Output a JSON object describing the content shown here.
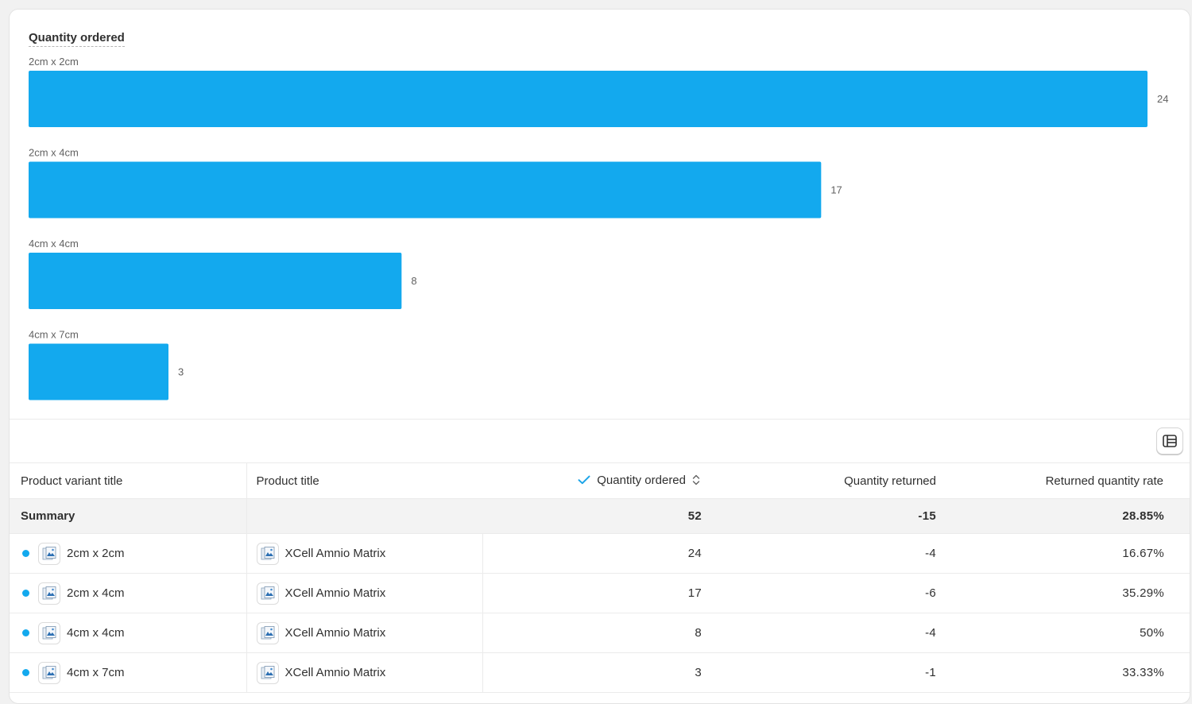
{
  "chart_data": {
    "type": "bar",
    "orientation": "horizontal",
    "title": "Quantity ordered",
    "categories": [
      "2cm x 2cm",
      "2cm x 4cm",
      "4cm x 4cm",
      "4cm x 7cm"
    ],
    "values": [
      24,
      17,
      8,
      3
    ],
    "xlim": [
      0,
      24
    ],
    "grid": false,
    "bar_color": "#13a9ee"
  },
  "table": {
    "headers": {
      "variant": "Product variant title",
      "product": "Product title",
      "ordered": "Quantity ordered",
      "returned": "Quantity returned",
      "rate": "Returned quantity rate"
    },
    "summary": {
      "label": "Summary",
      "ordered": "52",
      "returned": "-15",
      "rate": "28.85%"
    },
    "rows": [
      {
        "variant": "2cm x 2cm",
        "product": "XCell Amnio Matrix",
        "ordered": "24",
        "returned": "-4",
        "rate": "16.67%"
      },
      {
        "variant": "2cm x 4cm",
        "product": "XCell Amnio Matrix",
        "ordered": "17",
        "returned": "-6",
        "rate": "35.29%"
      },
      {
        "variant": "4cm x 4cm",
        "product": "XCell Amnio Matrix",
        "ordered": "8",
        "returned": "-4",
        "rate": "50%"
      },
      {
        "variant": "4cm x 7cm",
        "product": "XCell Amnio Matrix",
        "ordered": "3",
        "returned": "-1",
        "rate": "33.33%"
      }
    ]
  },
  "colors": {
    "accent": "#13a9ee",
    "check": "#1ba4e8"
  },
  "icons": {
    "toggle": "table-view-icon",
    "sorted": "checkmark-icon",
    "sort": "sort-arrows-icon",
    "thumb": "product-image-icon"
  }
}
